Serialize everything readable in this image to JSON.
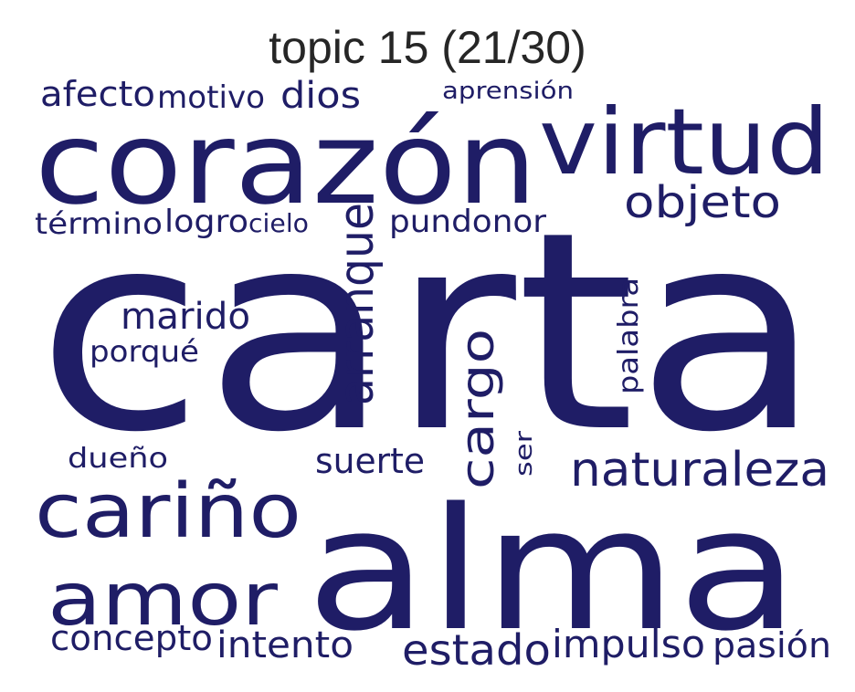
{
  "title": "topic 15 (21/30)",
  "color": "#1f1d66",
  "words": [
    {
      "text": "carta",
      "weight": 1.0
    },
    {
      "text": "alma",
      "weight": 0.62
    },
    {
      "text": "corazón",
      "weight": 0.42
    },
    {
      "text": "virtud",
      "weight": 0.3
    },
    {
      "text": "cariño",
      "weight": 0.27
    },
    {
      "text": "amor",
      "weight": 0.27
    },
    {
      "text": "arranque",
      "weight": 0.18
    },
    {
      "text": "cargo",
      "weight": 0.17
    },
    {
      "text": "naturaleza",
      "weight": 0.16
    },
    {
      "text": "objeto",
      "weight": 0.15
    },
    {
      "text": "estado",
      "weight": 0.14
    },
    {
      "text": "impulso",
      "weight": 0.13
    },
    {
      "text": "pasión",
      "weight": 0.12
    },
    {
      "text": "intento",
      "weight": 0.12
    },
    {
      "text": "concepto",
      "weight": 0.12
    },
    {
      "text": "marido",
      "weight": 0.12
    },
    {
      "text": "dios",
      "weight": 0.11
    },
    {
      "text": "afecto",
      "weight": 0.11
    },
    {
      "text": "suerte",
      "weight": 0.11
    },
    {
      "text": "pundonor",
      "weight": 0.1
    },
    {
      "text": "motivo",
      "weight": 0.1
    },
    {
      "text": "palabra",
      "weight": 0.09
    },
    {
      "text": "porqué",
      "weight": 0.09
    },
    {
      "text": "término",
      "weight": 0.09
    },
    {
      "text": "logro",
      "weight": 0.09
    },
    {
      "text": "dueño",
      "weight": 0.08
    },
    {
      "text": "cielo",
      "weight": 0.08
    },
    {
      "text": "aprensión",
      "weight": 0.07
    },
    {
      "text": "ser",
      "weight": 0.06
    }
  ]
}
